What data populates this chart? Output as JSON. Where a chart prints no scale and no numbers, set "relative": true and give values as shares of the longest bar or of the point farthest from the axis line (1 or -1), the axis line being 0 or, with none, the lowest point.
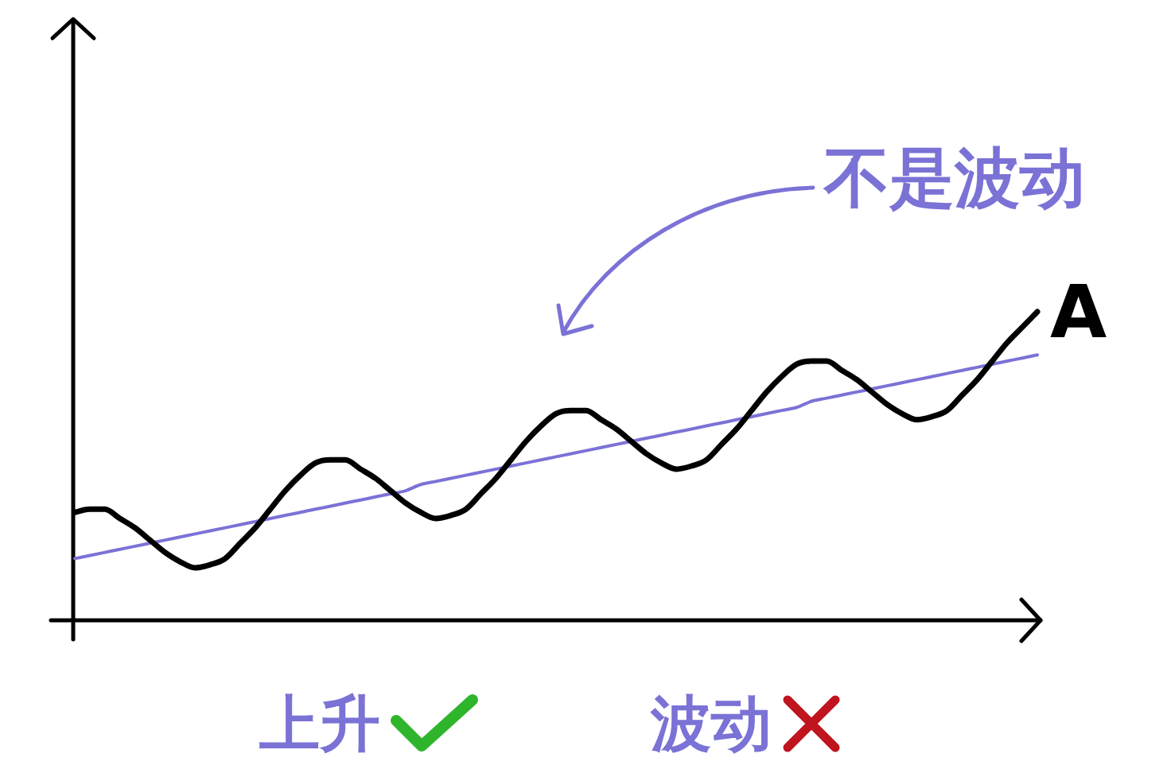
{
  "chart_data": {
    "type": "line",
    "relative": true,
    "marker": "none",
    "legend": false,
    "categories": [
      null,
      null,
      null,
      null,
      null,
      null,
      null,
      null,
      null,
      null,
      null,
      null,
      null,
      null,
      null,
      null,
      null,
      null,
      null,
      null,
      null,
      null,
      null,
      null,
      null,
      null,
      null,
      null,
      null,
      null,
      null,
      null,
      null,
      null,
      null,
      null,
      null,
      null,
      null,
      null,
      null,
      null,
      null,
      null,
      null,
      null,
      null,
      null,
      null,
      null,
      null,
      null,
      null,
      null,
      null,
      null,
      null,
      null,
      null,
      null,
      null,
      null,
      null,
      null,
      null
    ],
    "series": [
      {
        "name": "A",
        "color": "#000000",
        "values": [
          0.35,
          0.36,
          0.36,
          0.33,
          0.3,
          0.26,
          0.22,
          0.19,
          0.17,
          0.18,
          0.2,
          0.25,
          0.3,
          0.36,
          0.42,
          0.47,
          0.51,
          0.52,
          0.52,
          0.49,
          0.46,
          0.42,
          0.38,
          0.35,
          0.33,
          0.34,
          0.36,
          0.41,
          0.46,
          0.52,
          0.58,
          0.63,
          0.67,
          0.68,
          0.68,
          0.65,
          0.62,
          0.58,
          0.54,
          0.51,
          0.49,
          0.5,
          0.52,
          0.57,
          0.62,
          0.68,
          0.74,
          0.79,
          0.83,
          0.84,
          0.84,
          0.81,
          0.78,
          0.74,
          0.7,
          0.67,
          0.65,
          0.66,
          0.68,
          0.73,
          0.78,
          0.84,
          0.9,
          0.95,
          1
        ]
      },
      {
        "color": "#7b72d6",
        "values": [
          0.2,
          0.21,
          0.22,
          0.23,
          0.24,
          0.25,
          0.26,
          0.27,
          0.28,
          0.29,
          0.3,
          0.31,
          0.32,
          0.33,
          0.34,
          0.35,
          0.36,
          0.37,
          0.38,
          0.39,
          0.4,
          0.41,
          0.42,
          0.44,
          0.45,
          0.46,
          0.47,
          0.48,
          0.49,
          0.5,
          0.51,
          0.52,
          0.53,
          0.54,
          0.55,
          0.56,
          0.57,
          0.58,
          0.59,
          0.6,
          0.61,
          0.62,
          0.63,
          0.64,
          0.65,
          0.66,
          0.67,
          0.68,
          0.69,
          0.71,
          0.72,
          0.73,
          0.74,
          0.75,
          0.76,
          0.77,
          0.78,
          0.79,
          0.8,
          0.81,
          0.82,
          0.83,
          0.84,
          0.85,
          0.86
        ]
      }
    ],
    "annotations": [
      "不是波动",
      "上升",
      "波动"
    ]
  }
}
